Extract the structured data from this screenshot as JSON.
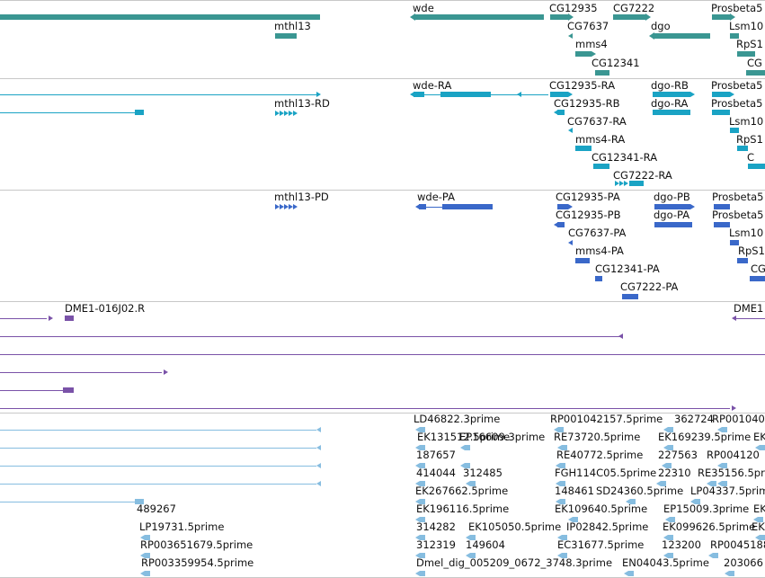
{
  "colors": {
    "gene": "#3a9692",
    "transcript": "#1aa3c4",
    "protein": "#3a68c9",
    "clone": "#7a52a8",
    "est": "#86bde0",
    "separator": "#c8c8c8"
  },
  "gene_labels": [
    "wde",
    "CG12935",
    "CG7222",
    "Prosbeta5",
    "mthl13",
    "CG7637",
    "dgo",
    "Lsm10",
    "mms4",
    "RpS1",
    "CG12341",
    "CG"
  ],
  "transcript_labels": [
    "wde-RA",
    "CG12935-RA",
    "dgo-RB",
    "Prosbeta5",
    "mthl13-RD",
    "CG12935-RB",
    "dgo-RA",
    "Prosbeta5",
    "CG7637-RA",
    "Lsm10",
    "mms4-RA",
    "RpS1",
    "CG12341-RA",
    "C",
    "CG7222-RA"
  ],
  "protein_labels": [
    "mthl13-PD",
    "wde-PA",
    "CG12935-PA",
    "dgo-PB",
    "Prosbeta5",
    "CG12935-PB",
    "dgo-PA",
    "Prosbeta5",
    "CG7637-PA",
    "Lsm10",
    "mms4-PA",
    "RpS1",
    "CG12341-PA",
    "CG",
    "CG7222-PA"
  ],
  "clone_labels": [
    "DME1-016J02.R",
    "DME1"
  ],
  "est_labels": [
    "LD46822.3prime",
    "RP001042157.5prime",
    "362724",
    "RP001040",
    "EK131512.5prime",
    "EP16609.3prime",
    "RE73720.5prime",
    "EK169239.5prime",
    "EK",
    "187657",
    "RE40772.5prime",
    "227563",
    "RP004120",
    "414044",
    "312485",
    "FGH114C05.5prime",
    "22310",
    "RE35156.5prime",
    "EK267662.5prime",
    "148461",
    "SD24360.5prime",
    "LP04337.5prime",
    "489267",
    "EK196116.5prime",
    "EK109640.5prime",
    "EP15009.3prime",
    "EK",
    "LP19731.5prime",
    "314282",
    "EK105050.5prime",
    "IP02842.5prime",
    "EK099626.5prime",
    "EK",
    "RP003651679.5prime",
    "312319",
    "149604",
    "EC31677.5prime",
    "123200",
    "RP0045188",
    "RP003359954.5prime",
    "Dmel_dig_005209_0672_3748.3prime",
    "EN04043.5prime",
    "203066"
  ]
}
